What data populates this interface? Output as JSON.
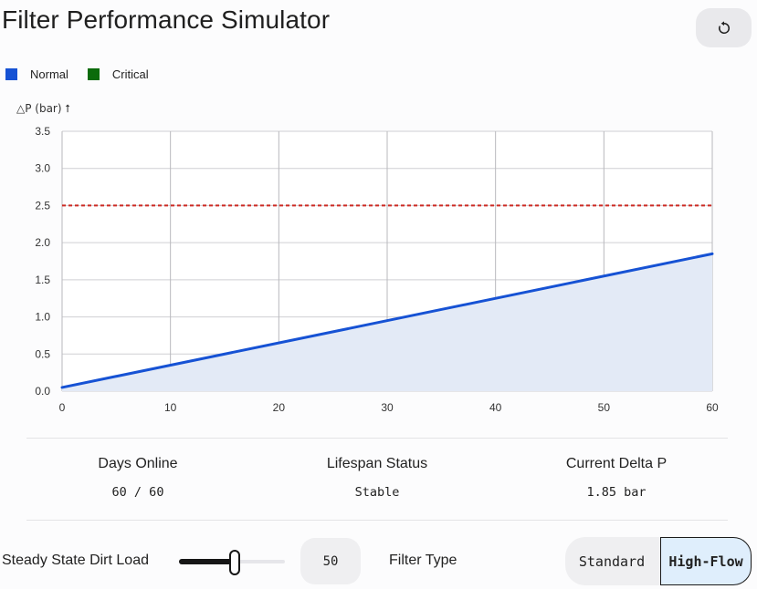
{
  "header": {
    "title": "Filter Performance Simulator",
    "reset_icon": "reset-icon"
  },
  "legend": [
    {
      "label": "Normal",
      "color": "#1652d4"
    },
    {
      "label": "Critical",
      "color": "#0b6b0b"
    }
  ],
  "chart_data": {
    "type": "area",
    "ylabel": "△P (bar) ⭡",
    "xlabel": "",
    "x_ticks": [
      "0",
      "10",
      "20",
      "30",
      "40",
      "50",
      "60"
    ],
    "y_ticks": [
      "0.0",
      "0.5",
      "1.0",
      "1.5",
      "2.0",
      "2.5",
      "3.0",
      "3.5"
    ],
    "xlim": [
      0,
      60
    ],
    "ylim": [
      0,
      3.5
    ],
    "grid": true,
    "series": [
      {
        "name": "Normal",
        "x": [
          0,
          60
        ],
        "y": [
          0.05,
          1.85
        ],
        "color": "#1652d4",
        "fill": "#e3eaf6"
      }
    ],
    "threshold": {
      "y": 2.5,
      "color": "#cc2a23",
      "style": "dashed"
    }
  },
  "stats": [
    {
      "label": "Days Online",
      "value": "60 / 60"
    },
    {
      "label": "Lifespan Status",
      "value": "Stable"
    },
    {
      "label": "Current Delta P",
      "value": "1.85 bar"
    }
  ],
  "controls": {
    "dirt_load_label": "Steady State Dirt Load",
    "dirt_load_value": "50",
    "dirt_load_fraction": 0.5,
    "filter_type_label": "Filter Type",
    "filter_options": [
      "Standard",
      "High-Flow"
    ],
    "selected_filter": "High-Flow"
  }
}
